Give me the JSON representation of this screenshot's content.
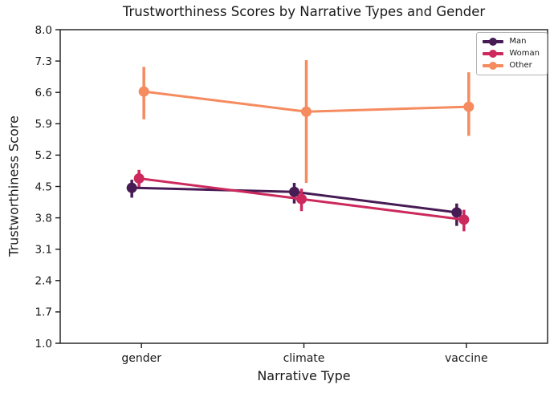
{
  "chart_data": {
    "type": "line",
    "subtype": "pointplot-with-error-bars",
    "title": "Trustworthiness Scores by Narrative Types and Gender",
    "xlabel": "Narrative Type",
    "ylabel": "Trustworthiness Score",
    "categories": [
      "gender",
      "climate",
      "vaccine"
    ],
    "series": [
      {
        "name": "Man",
        "color": "#471B54",
        "values": [
          4.47,
          4.38,
          3.92
        ],
        "ci_low": [
          4.25,
          4.12,
          3.62
        ],
        "ci_high": [
          4.65,
          4.58,
          4.12
        ]
      },
      {
        "name": "Woman",
        "color": "#CC295D",
        "values": [
          4.68,
          4.22,
          3.76
        ],
        "ci_low": [
          4.49,
          3.95,
          3.5
        ],
        "ci_high": [
          4.87,
          4.45,
          3.98
        ]
      },
      {
        "name": "Other",
        "color": "#F58B5F",
        "values": [
          6.62,
          6.17,
          6.28
        ],
        "ci_low": [
          6.0,
          4.58,
          5.63
        ],
        "ci_high": [
          7.17,
          7.32,
          7.05
        ]
      }
    ],
    "ylim": [
      1.0,
      8.0
    ],
    "yticks": [
      8.0,
      7.3,
      6.6,
      5.9,
      5.2,
      4.5,
      3.8,
      3.1,
      2.4,
      1.7,
      1.0
    ],
    "grid": false,
    "legend": {
      "position": "upper-right"
    },
    "axis_color": "#1a1a1a"
  }
}
